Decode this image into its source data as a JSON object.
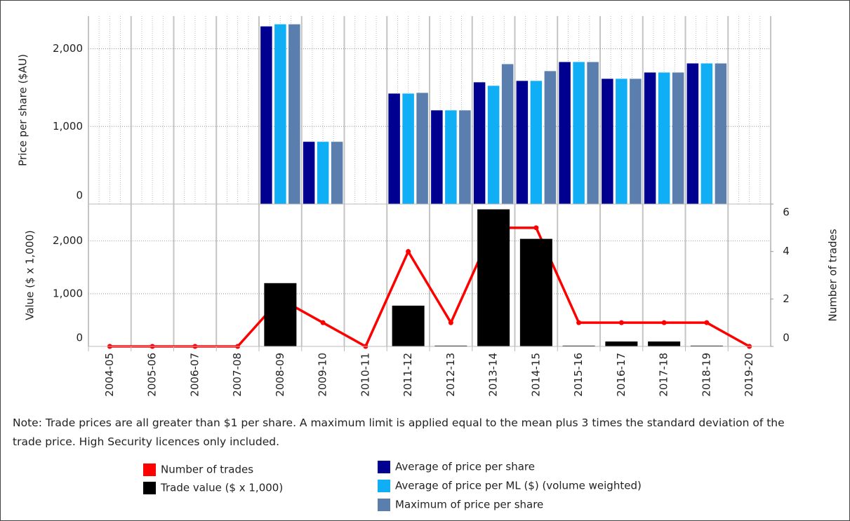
{
  "chart_data": [
    {
      "type": "bar",
      "ylabel": "Price per share ($AU)",
      "ylim": [
        0,
        2420
      ],
      "yticks": [
        0,
        {
          "value": 1000,
          "label": "1,000"
        },
        {
          "value": 2000,
          "label": "2,000"
        }
      ],
      "grid": true,
      "series": [
        {
          "name": "Average of price per share",
          "color": "#000090",
          "values": [
            null,
            null,
            null,
            null,
            2288,
            802,
            null,
            1423,
            1207,
            1568,
            1586,
            1829,
            1613,
            1694,
            1811,
            null
          ]
        },
        {
          "name": "Average of price per ML ($) (volume weighted)",
          "color": "#10aff5",
          "values": [
            null,
            null,
            null,
            null,
            2315,
            802,
            null,
            1423,
            1207,
            1523,
            1586,
            1829,
            1613,
            1694,
            1811,
            null
          ]
        },
        {
          "name": "Maximum of price per share",
          "color": "#5a7fae",
          "values": [
            null,
            null,
            null,
            null,
            2315,
            802,
            null,
            1432,
            1207,
            1802,
            1712,
            1829,
            1613,
            1694,
            1811,
            null
          ]
        }
      ]
    },
    {
      "type": "bar",
      "ylabel": "Value ($ x 1,000)",
      "y2label": "Number of trades",
      "categories": [
        "2004-05",
        "2005-06",
        "2006-07",
        "2007-08",
        "2008-09",
        "2009-10",
        "2010-11",
        "2011-12",
        "2012-13",
        "2013-14",
        "2014-15",
        "2015-16",
        "2016-17",
        "2017-18",
        "2018-19",
        "2019-20"
      ],
      "ylim": [
        0,
        2700
      ],
      "yticks": [
        0,
        {
          "value": 1000,
          "label": "1,000"
        },
        {
          "value": 2000,
          "label": "2,000"
        }
      ],
      "y2lim": [
        0,
        6
      ],
      "y2ticks": [
        0,
        2,
        4,
        6
      ],
      "grid": true,
      "series": [
        {
          "name": "Number of trades",
          "type": "line",
          "axis": "y2",
          "color": "#ff0000",
          "values": [
            0,
            0,
            0,
            0,
            2,
            1,
            0,
            4,
            1,
            5,
            5,
            1,
            1,
            1,
            1,
            0
          ]
        },
        {
          "name": "Trade value ($ x 1,000)",
          "type": "bar",
          "color": "#000000",
          "values": [
            0,
            0,
            0,
            0,
            1200,
            0,
            0,
            773,
            15,
            2600,
            2040,
            15,
            93,
            93,
            15,
            0
          ]
        }
      ]
    }
  ],
  "note": "Note: Trade prices are all greater than $1 per share. A maximum limit is applied equal to the mean plus 3 times the standard deviation of the trade price. High Security licences only included."
}
